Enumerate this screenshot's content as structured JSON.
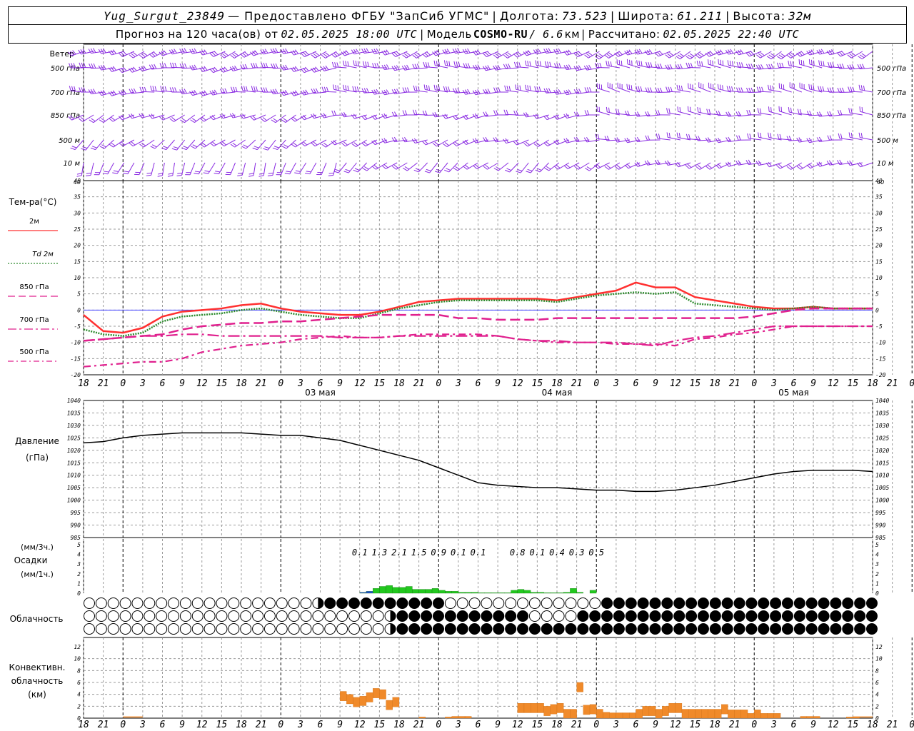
{
  "header": {
    "station": "Yug_Surgut_23849",
    "provided_by": "— Предоставлено ФГБУ \"ЗапСиб УГМС\"",
    "lon_label": "Долгота:",
    "lon_value": "73.523",
    "lat_label": "Широта:",
    "lat_value": "61.211",
    "alt_label": "Высота:",
    "alt_value": "32м",
    "forecast_label": "Прогноз на 120 часа(ов) от",
    "forecast_time": "02.05.2025 18:00 UTC",
    "model_label": "Модель",
    "model_name": "COSMO-RU",
    "model_res": "/ 6.6",
    "model_res_unit": "км",
    "calc_label": "Рассчитано:",
    "calc_time": "02.05.2025 22:40 UTC"
  },
  "axis": {
    "hour_ticks": [
      "18",
      "21",
      "0",
      "3",
      "6",
      "9",
      "12",
      "15",
      "18",
      "21",
      "0",
      "3",
      "6",
      "9",
      "12",
      "15",
      "18",
      "21",
      "0",
      "3",
      "6",
      "9",
      "12",
      "15",
      "18",
      "21",
      "0",
      "3",
      "6",
      "9",
      "12",
      "15",
      "18",
      "21",
      "0",
      "3",
      "6",
      "9",
      "12",
      "15",
      "18",
      "21",
      "0"
    ],
    "day_labels": [
      "03 мая",
      "04 мая",
      "05 мая"
    ]
  },
  "wind_panel": {
    "title": "Ветер",
    "levels": [
      "500 гПа",
      "700 гПа",
      "850 гПа",
      "500 м",
      "10  м"
    ],
    "color": "#8a2be2"
  },
  "temp_panel": {
    "title": "Тем-ра(°С)",
    "legend": [
      {
        "label": "2м",
        "color": "#ff3030",
        "style": "solid"
      },
      {
        "label": "Td 2м",
        "color": "#2e8b2e",
        "style": "dotted"
      },
      {
        "label": "850 гПа",
        "color": "#e0208e",
        "style": "dashed"
      },
      {
        "label": "700 гПа",
        "color": "#e0208e",
        "style": "dashdot"
      },
      {
        "label": "500 гПа",
        "color": "#e0208e",
        "style": "dashdot2"
      }
    ],
    "y_ticks": [
      "40",
      "35",
      "30",
      "25",
      "20",
      "15",
      "10",
      "5",
      "0",
      "-5",
      "-10",
      "-15",
      "-20"
    ]
  },
  "pressure_panel": {
    "title": "Давление",
    "unit": "(гПа)",
    "y_ticks": [
      "1040",
      "1035",
      "1030",
      "1025",
      "1020",
      "1015",
      "1010",
      "1005",
      "1000",
      "995",
      "990",
      "985"
    ]
  },
  "precip_panel": {
    "unit3": "(мм/3ч.)",
    "title": "Осадки",
    "unit1": "(мм/1ч.)",
    "y_ticks": [
      "5",
      "4",
      "3",
      "2",
      "1",
      "0"
    ],
    "sums": [
      {
        "h": 42,
        "v": "0.1"
      },
      {
        "h": 45,
        "v": "1.3"
      },
      {
        "h": 48,
        "v": "2.1"
      },
      {
        "h": 51,
        "v": "1.5"
      },
      {
        "h": 54,
        "v": "0.9"
      },
      {
        "h": 57,
        "v": "0.1"
      },
      {
        "h": 60,
        "v": "0.1"
      },
      {
        "h": 66,
        "v": "0.8"
      },
      {
        "h": 69,
        "v": "0.1"
      },
      {
        "h": 72,
        "v": "0.4"
      },
      {
        "h": 75,
        "v": "0.3"
      },
      {
        "h": 78,
        "v": "0.5"
      }
    ]
  },
  "cloud_panel": {
    "title": "Облачность"
  },
  "conv_panel": {
    "title1": "Конвективн.",
    "title2": "облачность",
    "unit": "(км)",
    "y_ticks": [
      "12",
      "10",
      "8",
      "6",
      "4",
      "2",
      "0"
    ]
  },
  "chart_data": [
    {
      "type": "line",
      "title": "Тем-ра(°С)",
      "ylim": [
        -20,
        40
      ],
      "x_hours_from_start": [
        0,
        3,
        6,
        9,
        12,
        15,
        18,
        21,
        24,
        27,
        30,
        33,
        36,
        39,
        42,
        45,
        48,
        51,
        54,
        57,
        60,
        63,
        66,
        69,
        72,
        75,
        78,
        81,
        84,
        87,
        90,
        93,
        96,
        99,
        102,
        105,
        108,
        111,
        114,
        117,
        120
      ],
      "series": [
        {
          "name": "2м",
          "values": [
            -1.5,
            -6.5,
            -7,
            -5.5,
            -2,
            -0.5,
            0,
            0.5,
            1.5,
            2,
            0.5,
            -0.5,
            -1,
            -1.5,
            -1.5,
            -0.5,
            1,
            2.5,
            3,
            3.5,
            3.5,
            3.5,
            3.5,
            3.5,
            3,
            4,
            5,
            6,
            8.5,
            7,
            7,
            4,
            3,
            2,
            1,
            0.5,
            0.5,
            1,
            0.5,
            0.5,
            0.5
          ]
        },
        {
          "name": "Td 2м",
          "values": [
            -6,
            -7.5,
            -8,
            -7,
            -3.5,
            -2,
            -1.5,
            -1,
            0,
            0.5,
            -0.5,
            -1.5,
            -2,
            -2.5,
            -2.5,
            -1,
            0.5,
            1.5,
            2.5,
            3,
            3,
            3,
            3,
            3,
            2.5,
            3.5,
            4.5,
            5,
            5.5,
            5,
            5.5,
            2,
            1.5,
            1,
            0.5,
            0,
            0.5,
            1,
            0.5,
            0.5,
            0.5
          ]
        },
        {
          "name": "850 гПа",
          "values": [
            -9.5,
            -9,
            -8.5,
            -8,
            -7.5,
            -6,
            -5,
            -4.5,
            -4,
            -4,
            -3.5,
            -3.5,
            -3,
            -2.5,
            -2,
            -1.5,
            -1.5,
            -1.5,
            -1.5,
            -2.5,
            -2.5,
            -3,
            -3,
            -3,
            -2.5,
            -2.5,
            -2.5,
            -2.5,
            -2.5,
            -2.5,
            -2.5,
            -2.5,
            -2.5,
            -2.5,
            -2,
            -1,
            0,
            0.5,
            0.5,
            0.5,
            0.5
          ]
        },
        {
          "name": "700 гПа",
          "values": [
            -9.5,
            -9,
            -8.5,
            -8,
            -8,
            -7.5,
            -7.5,
            -8,
            -8,
            -8,
            -8,
            -8,
            -8,
            -8.5,
            -8.5,
            -8.5,
            -8,
            -8,
            -8,
            -8,
            -8,
            -8,
            -9,
            -9.5,
            -9.5,
            -10,
            -10,
            -10,
            -10.5,
            -11,
            -9.5,
            -8.5,
            -8,
            -7,
            -6,
            -5,
            -5,
            -5,
            -5,
            -5,
            -5
          ]
        },
        {
          "name": "500 гПа",
          "values": [
            -17.5,
            -17,
            -16.5,
            -16,
            -16,
            -15,
            -13,
            -12,
            -11,
            -10.5,
            -10,
            -9,
            -8.5,
            -8,
            -8.5,
            -8.5,
            -8,
            -7.5,
            -7.5,
            -7.5,
            -7.5,
            -8,
            -9,
            -9.5,
            -10,
            -10,
            -10,
            -10.5,
            -10.5,
            -10.5,
            -11,
            -9,
            -8.5,
            -7.5,
            -7,
            -6,
            -5,
            -5,
            -5,
            -5,
            -5
          ]
        }
      ]
    },
    {
      "type": "line",
      "title": "Давление",
      "ylim": [
        985,
        1040
      ],
      "x_hours_from_start": [
        0,
        3,
        6,
        9,
        12,
        15,
        18,
        21,
        24,
        27,
        30,
        33,
        36,
        39,
        42,
        45,
        48,
        51,
        54,
        57,
        60,
        63,
        66,
        69,
        72,
        75,
        78,
        81,
        84,
        87,
        90,
        93,
        96,
        99,
        102,
        105,
        108,
        111,
        114,
        117,
        120
      ],
      "series": [
        {
          "name": "",
          "values": [
            1023,
            1023.5,
            1025,
            1026,
            1026.5,
            1027,
            1027,
            1027,
            1027,
            1026.5,
            1026,
            1026,
            1025,
            1024,
            1022,
            1020,
            1018,
            1016,
            1013,
            1010,
            1007,
            1006,
            1005.5,
            1005,
            1005,
            1004.5,
            1004,
            1004,
            1003.5,
            1003.5,
            1004,
            1005,
            1006,
            1007.5,
            1009,
            1010.5,
            1011.5,
            1012,
            1012,
            1012,
            1011.5
          ]
        }
      ]
    },
    {
      "type": "bar",
      "title": "Осадки",
      "ylim": [
        0,
        5
      ],
      "x_hours_from_start": [
        43,
        44,
        45,
        46,
        47,
        48,
        49,
        50,
        51,
        52,
        53,
        54,
        55,
        56,
        57,
        58,
        59,
        60,
        61,
        62,
        63,
        64,
        65,
        66,
        67,
        68,
        69,
        70,
        71,
        72,
        73,
        74,
        75,
        76,
        77,
        78
      ],
      "values": [
        0.1,
        0.2,
        0.5,
        0.7,
        0.8,
        0.6,
        0.6,
        0.7,
        0.4,
        0.4,
        0.4,
        0.5,
        0.3,
        0.2,
        0.2,
        0.1,
        0.1,
        0.1,
        0.05,
        0.05,
        0.05,
        0.05,
        0.05,
        0.3,
        0.4,
        0.3,
        0.1,
        0.1,
        0.05,
        0.05,
        0.05,
        0.1,
        0.5,
        0.1,
        0,
        0.3
      ]
    },
    {
      "type": "bar",
      "title": "Конвективн. облачность",
      "ylim": [
        0,
        13
      ],
      "x_hours_from_start": [
        40,
        41,
        42,
        43,
        44,
        45,
        46,
        47,
        48,
        49,
        50,
        51,
        52,
        53,
        54,
        55,
        56,
        57,
        58,
        59,
        60,
        61,
        62,
        63,
        64,
        65,
        66,
        67,
        68,
        69,
        70,
        71,
        72,
        73,
        74,
        75,
        76,
        77,
        78,
        79,
        80,
        81,
        82,
        83,
        84,
        85,
        86,
        87,
        88,
        89,
        90,
        91,
        92,
        93,
        94,
        95,
        96,
        97,
        98,
        99,
        100,
        101,
        102,
        103,
        104,
        105,
        106,
        107,
        108,
        109,
        110,
        111,
        112,
        113,
        114,
        115,
        116,
        117,
        118,
        119
      ],
      "values": [
        4.5,
        4,
        3.5,
        3.7,
        4.3,
        5,
        4.8,
        3,
        3.5,
        0,
        0,
        0,
        0.2,
        0,
        0,
        0,
        0.2,
        0.3,
        0.3,
        0.3,
        0,
        0,
        0,
        0,
        0,
        0,
        0,
        2.5,
        2.5,
        2.5,
        2.5,
        2,
        2.3,
        2.5,
        1.5,
        1.5,
        6,
        2.2,
        2.3,
        1.5,
        1,
        0.9,
        0.9,
        0.9,
        0.9,
        1.5,
        2,
        2,
        1.5,
        2,
        2.5,
        2.5,
        1.5,
        1.5,
        1.5,
        1.5,
        1.5,
        1.5,
        2.3,
        1.4,
        1.4,
        1.4,
        0.8,
        1.4,
        0.8,
        0.8,
        0.8,
        0,
        0,
        0,
        0.3,
        0.3,
        0.3,
        0,
        0,
        0,
        0,
        0.2,
        0.2,
        0
      ]
    }
  ]
}
